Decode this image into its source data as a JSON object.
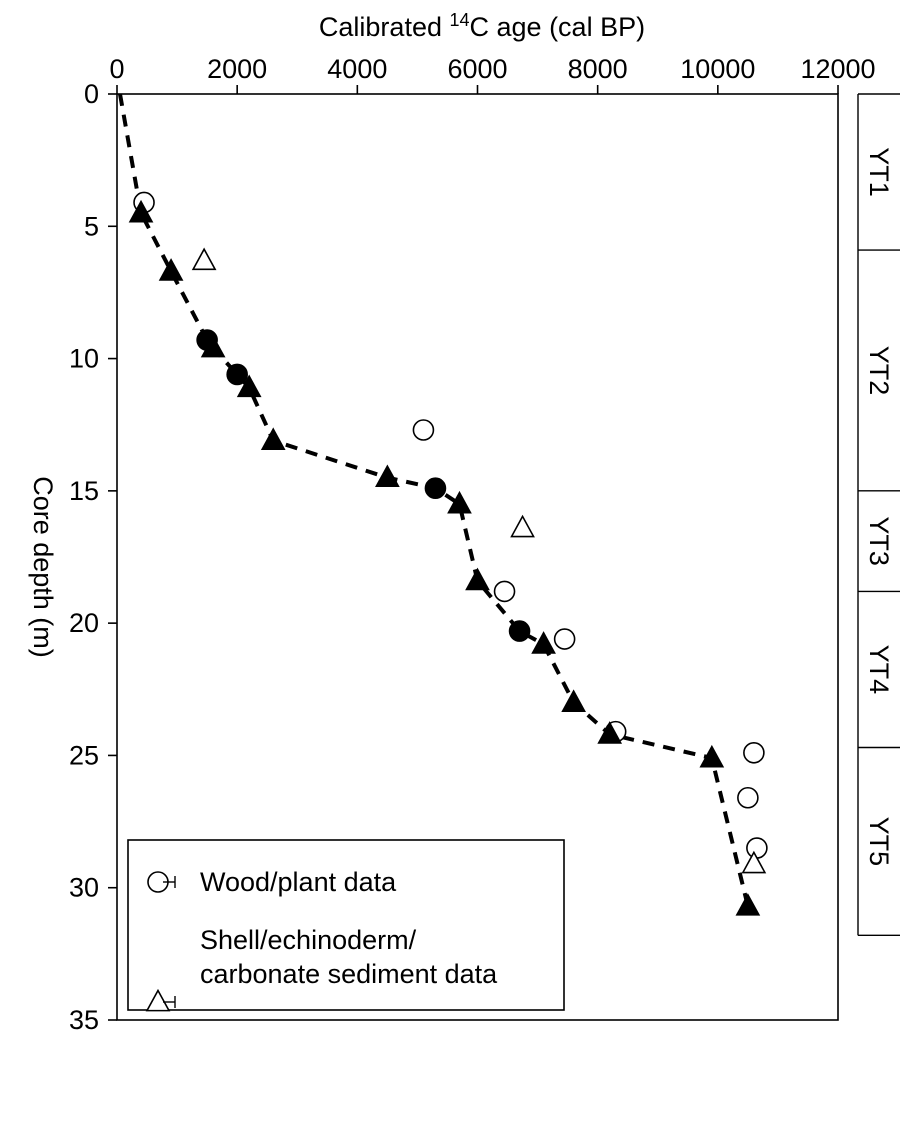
{
  "chart_data": {
    "type": "scatter",
    "x_title": {
      "pre": "Calibrated ",
      "sup": "14",
      "post": "C age (cal BP)"
    },
    "ylabel": "Core depth (m)",
    "xlim": [
      0,
      12000
    ],
    "ylim": [
      0,
      35
    ],
    "y_inverted": true,
    "x_axis_position": "top",
    "x_ticks": [
      "0",
      "2000",
      "4000",
      "6000",
      "8000",
      "10000",
      "12000"
    ],
    "y_ticks": [
      "0",
      "5",
      "10",
      "15",
      "20",
      "25",
      "30",
      "35"
    ],
    "grid": false,
    "legend_position": "bottom-left",
    "series": [
      {
        "name": "Wood/plant data",
        "marker": "circle-open",
        "points": [
          [
            450,
            4.1
          ],
          [
            5100,
            12.7
          ],
          [
            6450,
            18.8
          ],
          [
            7450,
            20.6
          ],
          [
            8300,
            24.1
          ],
          [
            10600,
            24.9
          ],
          [
            10500,
            26.6
          ],
          [
            10650,
            28.5
          ]
        ]
      },
      {
        "marker": "circle-filled",
        "points": [
          [
            1500,
            9.3
          ],
          [
            2000,
            10.6
          ],
          [
            5300,
            14.9
          ],
          [
            6700,
            20.3
          ]
        ]
      },
      {
        "name": "Shell/echinoderm/\ncarbonate sediment data",
        "marker": "triangle-open",
        "points": [
          [
            1450,
            6.3
          ],
          [
            6750,
            16.4
          ],
          [
            10600,
            29.1
          ]
        ]
      },
      {
        "marker": "triangle-filled",
        "points": [
          [
            400,
            4.5
          ],
          [
            900,
            6.7
          ],
          [
            1600,
            9.6
          ],
          [
            2200,
            11.1
          ],
          [
            2600,
            13.1
          ],
          [
            4500,
            14.5
          ],
          [
            5700,
            15.5
          ],
          [
            6000,
            18.4
          ],
          [
            7100,
            20.8
          ],
          [
            7600,
            23.0
          ],
          [
            8200,
            24.2
          ],
          [
            9900,
            25.1
          ],
          [
            10500,
            30.7
          ]
        ]
      }
    ],
    "trend_line": {
      "style": "dashed",
      "points": [
        [
          50,
          0
        ],
        [
          400,
          4.5
        ],
        [
          900,
          6.7
        ],
        [
          1500,
          9.3
        ],
        [
          1600,
          9.6
        ],
        [
          2000,
          10.6
        ],
        [
          2200,
          11.1
        ],
        [
          2600,
          13.1
        ],
        [
          4500,
          14.5
        ],
        [
          5300,
          14.9
        ],
        [
          5700,
          15.5
        ],
        [
          6000,
          18.4
        ],
        [
          6700,
          20.3
        ],
        [
          7100,
          20.8
        ],
        [
          7600,
          23.0
        ],
        [
          8200,
          24.2
        ],
        [
          9900,
          25.1
        ],
        [
          10500,
          30.7
        ]
      ]
    },
    "units": [
      {
        "label": "YT1",
        "top": 0,
        "bottom": 5.9
      },
      {
        "label": "YT2",
        "top": 5.9,
        "bottom": 15.0
      },
      {
        "label": "YT3",
        "top": 15.0,
        "bottom": 18.8
      },
      {
        "label": "YT4",
        "top": 18.8,
        "bottom": 24.7
      },
      {
        "label": "YT5",
        "top": 24.7,
        "bottom": 31.8
      }
    ],
    "colors": {
      "ink": "#000000",
      "background": "#ffffff"
    }
  }
}
